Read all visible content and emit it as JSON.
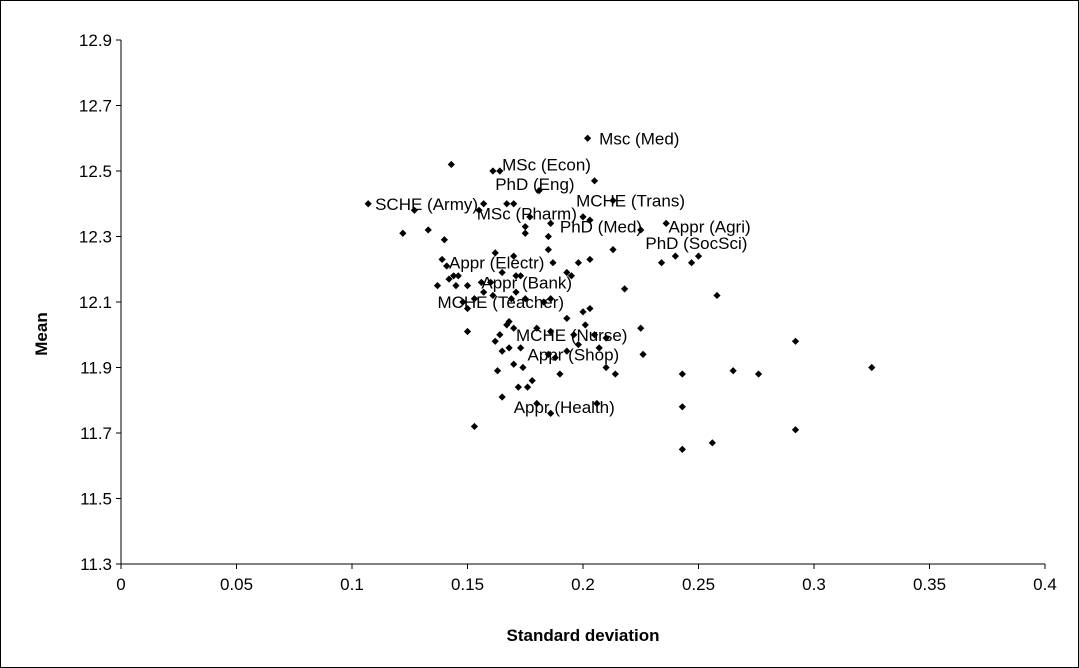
{
  "chart_data": {
    "type": "scatter",
    "title": "",
    "xlabel": "Standard deviation",
    "ylabel": "Mean",
    "xlim": [
      0,
      0.4
    ],
    "ylim": [
      11.3,
      12.9
    ],
    "x_ticks": [
      "0",
      "0.05",
      "0.1",
      "0.15",
      "0.2",
      "0.25",
      "0.3",
      "0.35",
      "0.4"
    ],
    "y_ticks": [
      "11.3",
      "11.5",
      "11.7",
      "11.9",
      "12.1",
      "12.3",
      "12.5",
      "12.7",
      "12.9"
    ],
    "grid": false,
    "legend": "none",
    "marker_color": "#000000",
    "marker": "diamond",
    "points": [
      [
        0.107,
        12.4
      ],
      [
        0.127,
        12.38
      ],
      [
        0.122,
        12.31
      ],
      [
        0.133,
        12.32
      ],
      [
        0.14,
        12.29
      ],
      [
        0.143,
        12.52
      ],
      [
        0.155,
        12.38
      ],
      [
        0.157,
        12.4
      ],
      [
        0.161,
        12.5
      ],
      [
        0.164,
        12.5
      ],
      [
        0.167,
        12.4
      ],
      [
        0.17,
        12.4
      ],
      [
        0.175,
        12.33
      ],
      [
        0.175,
        12.31
      ],
      [
        0.177,
        12.36
      ],
      [
        0.181,
        12.44
      ],
      [
        0.186,
        12.34
      ],
      [
        0.185,
        12.3
      ],
      [
        0.202,
        12.6
      ],
      [
        0.205,
        12.47
      ],
      [
        0.2,
        12.36
      ],
      [
        0.203,
        12.35
      ],
      [
        0.213,
        12.41
      ],
      [
        0.225,
        12.32
      ],
      [
        0.236,
        12.34
      ],
      [
        0.24,
        12.24
      ],
      [
        0.234,
        12.22
      ],
      [
        0.247,
        12.22
      ],
      [
        0.25,
        12.24
      ],
      [
        0.139,
        12.23
      ],
      [
        0.141,
        12.21
      ],
      [
        0.144,
        12.18
      ],
      [
        0.142,
        12.17
      ],
      [
        0.146,
        12.18
      ],
      [
        0.145,
        12.15
      ],
      [
        0.137,
        12.15
      ],
      [
        0.15,
        12.15
      ],
      [
        0.156,
        12.16
      ],
      [
        0.16,
        12.16
      ],
      [
        0.162,
        12.25
      ],
      [
        0.165,
        12.19
      ],
      [
        0.17,
        12.24
      ],
      [
        0.171,
        12.18
      ],
      [
        0.173,
        12.18
      ],
      [
        0.185,
        12.26
      ],
      [
        0.187,
        12.22
      ],
      [
        0.193,
        12.19
      ],
      [
        0.195,
        12.18
      ],
      [
        0.198,
        12.22
      ],
      [
        0.203,
        12.23
      ],
      [
        0.213,
        12.26
      ],
      [
        0.218,
        12.14
      ],
      [
        0.148,
        12.1
      ],
      [
        0.15,
        12.08
      ],
      [
        0.153,
        12.11
      ],
      [
        0.157,
        12.13
      ],
      [
        0.161,
        12.12
      ],
      [
        0.169,
        12.11
      ],
      [
        0.171,
        12.13
      ],
      [
        0.175,
        12.11
      ],
      [
        0.183,
        12.1
      ],
      [
        0.186,
        12.11
      ],
      [
        0.2,
        12.07
      ],
      [
        0.203,
        12.08
      ],
      [
        0.258,
        12.12
      ],
      [
        0.15,
        12.01
      ],
      [
        0.162,
        11.98
      ],
      [
        0.164,
        12.0
      ],
      [
        0.167,
        12.03
      ],
      [
        0.168,
        12.04
      ],
      [
        0.17,
        12.02
      ],
      [
        0.18,
        12.02
      ],
      [
        0.186,
        12.01
      ],
      [
        0.193,
        12.05
      ],
      [
        0.196,
        12.0
      ],
      [
        0.201,
        12.03
      ],
      [
        0.205,
        12.0
      ],
      [
        0.21,
        11.99
      ],
      [
        0.225,
        12.02
      ],
      [
        0.165,
        11.95
      ],
      [
        0.168,
        11.96
      ],
      [
        0.173,
        11.96
      ],
      [
        0.185,
        11.94
      ],
      [
        0.188,
        11.93
      ],
      [
        0.193,
        11.95
      ],
      [
        0.198,
        11.97
      ],
      [
        0.207,
        11.96
      ],
      [
        0.226,
        11.94
      ],
      [
        0.163,
        11.89
      ],
      [
        0.17,
        11.91
      ],
      [
        0.174,
        11.9
      ],
      [
        0.178,
        11.86
      ],
      [
        0.176,
        11.84
      ],
      [
        0.19,
        11.88
      ],
      [
        0.21,
        11.9
      ],
      [
        0.214,
        11.88
      ],
      [
        0.165,
        11.81
      ],
      [
        0.172,
        11.84
      ],
      [
        0.18,
        11.79
      ],
      [
        0.186,
        11.76
      ],
      [
        0.206,
        11.79
      ],
      [
        0.243,
        11.78
      ],
      [
        0.243,
        11.88
      ],
      [
        0.265,
        11.89
      ],
      [
        0.276,
        11.88
      ],
      [
        0.292,
        11.98
      ],
      [
        0.325,
        11.9
      ],
      [
        0.153,
        11.72
      ],
      [
        0.243,
        11.65
      ],
      [
        0.256,
        11.67
      ],
      [
        0.292,
        11.71
      ]
    ],
    "annotations": [
      {
        "text": "Msc (Med)",
        "x": 0.207,
        "y": 12.6
      },
      {
        "text": "MSc (Econ)",
        "x": 0.165,
        "y": 12.52
      },
      {
        "text": "PhD (Eng)",
        "x": 0.162,
        "y": 12.46
      },
      {
        "text": "MCHE (Trans)",
        "x": 0.197,
        "y": 12.41
      },
      {
        "text": "SCHE (Army)",
        "x": 0.11,
        "y": 12.4
      },
      {
        "text": "MSc (Pharm)",
        "x": 0.154,
        "y": 12.37
      },
      {
        "text": "PhD (Med)",
        "x": 0.19,
        "y": 12.33
      },
      {
        "text": "Appr (Agri)",
        "x": 0.237,
        "y": 12.33
      },
      {
        "text": "PhD (SocSci)",
        "x": 0.227,
        "y": 12.28
      },
      {
        "text": "Appr (Electr)",
        "x": 0.142,
        "y": 12.22
      },
      {
        "text": "Appr (Bank)",
        "x": 0.156,
        "y": 12.16
      },
      {
        "text": "MCHE (Teacher)",
        "x": 0.137,
        "y": 12.1
      },
      {
        "text": "MCHE (Nurse)",
        "x": 0.171,
        "y": 12.0
      },
      {
        "text": "Appr (Shop)",
        "x": 0.176,
        "y": 11.94
      },
      {
        "text": "Appr (Health)",
        "x": 0.17,
        "y": 11.78
      }
    ]
  }
}
